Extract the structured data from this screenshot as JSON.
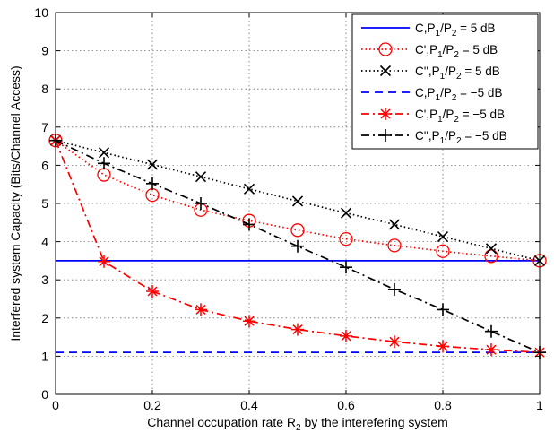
{
  "chart_data": {
    "type": "line",
    "title": "",
    "xlabel": "Channel occupation rate R_2 by the interefering system",
    "ylabel": "Interfered system Capacity (Bits/Channel Access)",
    "xlim": [
      0,
      1
    ],
    "ylim": [
      0,
      10
    ],
    "x_ticks": [
      "0",
      "0.2",
      "0.4",
      "0.6",
      "0.8",
      "1"
    ],
    "y_ticks": [
      "0",
      "1",
      "2",
      "3",
      "4",
      "5",
      "6",
      "7",
      "8",
      "9",
      "10"
    ],
    "grid": true,
    "legend_position": "top-right",
    "series": [
      {
        "name": "C,P_1/P_2 = 5 dB",
        "color": "#0000ff",
        "dash": "solid",
        "marker": "none",
        "x": [
          0,
          1
        ],
        "y": [
          3.5,
          3.5
        ]
      },
      {
        "name": "C',P_1/P_2 = 5 dB",
        "color": "#ff0000",
        "dash": "dotted",
        "marker": "circle",
        "x": [
          0,
          0.1,
          0.2,
          0.3,
          0.4,
          0.5,
          0.6,
          0.7,
          0.8,
          0.9,
          1
        ],
        "y": [
          6.65,
          5.75,
          5.22,
          4.83,
          4.55,
          4.3,
          4.07,
          3.9,
          3.75,
          3.62,
          3.5
        ]
      },
      {
        "name": "C'',P_1/P_2 = 5 dB",
        "color": "#000000",
        "dash": "dotted",
        "marker": "x",
        "x": [
          0,
          0.1,
          0.2,
          0.3,
          0.4,
          0.5,
          0.6,
          0.7,
          0.8,
          0.9,
          1
        ],
        "y": [
          6.65,
          6.33,
          6.02,
          5.7,
          5.38,
          5.06,
          4.75,
          4.45,
          4.13,
          3.82,
          3.5
        ]
      },
      {
        "name": "C,P_1/P_2 = −5 dB",
        "color": "#0000ff",
        "dash": "dashed",
        "marker": "none",
        "x": [
          0,
          1
        ],
        "y": [
          1.1,
          1.1
        ]
      },
      {
        "name": "C',P_1/P_2 = −5 dB",
        "color": "#ff0000",
        "dash": "dashdot",
        "marker": "asterisk",
        "x": [
          0,
          0.1,
          0.2,
          0.3,
          0.4,
          0.5,
          0.6,
          0.7,
          0.8,
          0.9,
          1
        ],
        "y": [
          6.65,
          3.48,
          2.7,
          2.22,
          1.92,
          1.7,
          1.53,
          1.38,
          1.26,
          1.17,
          1.1
        ]
      },
      {
        "name": "C'',P_1/P_2 = −5 dB",
        "color": "#000000",
        "dash": "dashdot",
        "marker": "plus",
        "x": [
          0,
          0.1,
          0.2,
          0.3,
          0.4,
          0.5,
          0.6,
          0.7,
          0.8,
          0.9,
          1
        ],
        "y": [
          6.65,
          6.05,
          5.52,
          5.0,
          4.45,
          3.88,
          3.33,
          2.75,
          2.22,
          1.65,
          1.1
        ]
      }
    ]
  }
}
